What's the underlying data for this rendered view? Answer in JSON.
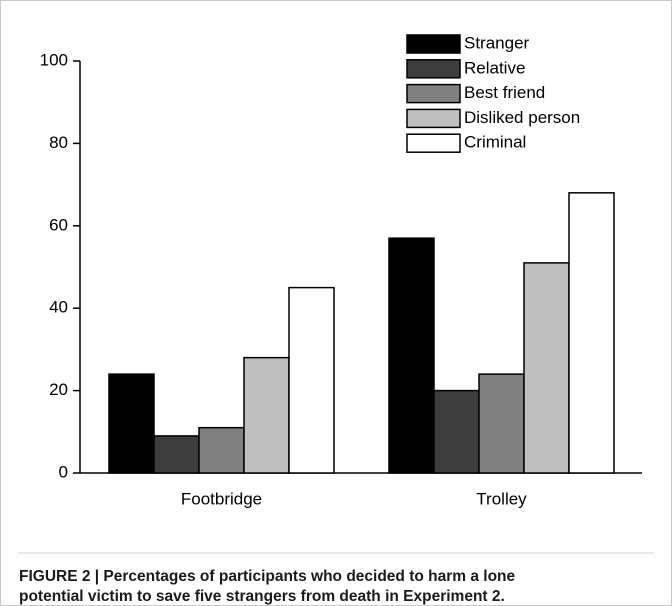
{
  "chart_data": {
    "type": "bar",
    "categories": [
      "Footbridge",
      "Trolley"
    ],
    "series": [
      {
        "name": "Stranger",
        "color": "#000000",
        "values": [
          24,
          57
        ]
      },
      {
        "name": "Relative",
        "color": "#3d3d3d",
        "values": [
          9,
          20
        ]
      },
      {
        "name": "Best friend",
        "color": "#808080",
        "values": [
          11,
          24
        ]
      },
      {
        "name": "Disliked person",
        "color": "#bfbfbf",
        "values": [
          28,
          51
        ]
      },
      {
        "name": "Criminal",
        "color": "#ffffff",
        "values": [
          45,
          68
        ]
      }
    ],
    "ylim": [
      0,
      100
    ],
    "yticks": [
      0,
      20,
      40,
      60,
      80,
      100
    ],
    "grid": false,
    "legend": "upper right",
    "caption": [
      "FIGURE 2 | Percentages of participants who decided to harm a lone",
      "potential victim to save five strangers from death in Experiment 2."
    ]
  }
}
